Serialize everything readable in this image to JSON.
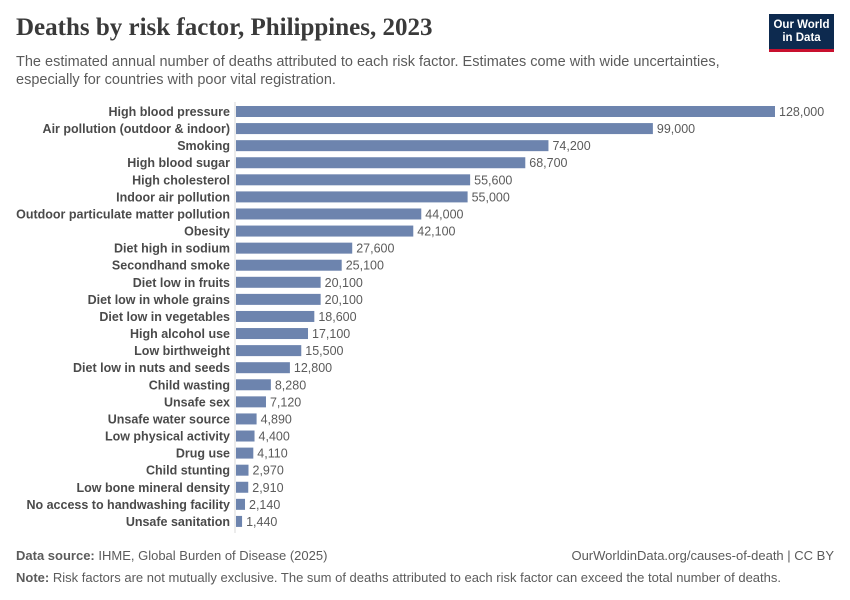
{
  "header": {
    "title": "Deaths by risk factor, Philippines, 2023",
    "subtitle": "The estimated annual number of deaths attributed to each risk factor. Estimates come with wide uncertainties, especially for countries with poor vital registration.",
    "logo_line1": "Our World",
    "logo_line2": "in Data"
  },
  "footer": {
    "source_label": "Data source:",
    "source_text": "IHME, Global Burden of Disease (2025)",
    "url": "OurWorldinData.org/causes-of-death | CC BY",
    "note_label": "Note:",
    "note_text": "Risk factors are not mutually exclusive. The sum of deaths attributed to each risk factor can exceed the total number of deaths."
  },
  "colors": {
    "bar": "#6d84ae",
    "logo_bg": "#0d2a4f",
    "logo_accent": "#c8102e"
  },
  "chart_data": {
    "type": "bar",
    "orientation": "horizontal",
    "categories": [
      "High blood pressure",
      "Air pollution (outdoor & indoor)",
      "Smoking",
      "High blood sugar",
      "High cholesterol",
      "Indoor air pollution",
      "Outdoor particulate matter pollution",
      "Obesity",
      "Diet high in sodium",
      "Secondhand smoke",
      "Diet low in fruits",
      "Diet low in whole grains",
      "Diet low in vegetables",
      "High alcohol use",
      "Low birthweight",
      "Diet low in nuts and seeds",
      "Child wasting",
      "Unsafe sex",
      "Unsafe water source",
      "Low physical activity",
      "Drug use",
      "Child stunting",
      "Low bone mineral density",
      "No access to handwashing facility",
      "Unsafe sanitation"
    ],
    "values": [
      128000,
      99000,
      74200,
      68700,
      55600,
      55000,
      44000,
      42100,
      27600,
      25100,
      20100,
      20100,
      18600,
      17100,
      15500,
      12800,
      8280,
      7120,
      4890,
      4400,
      4110,
      2970,
      2910,
      2140,
      1440
    ],
    "value_labels": [
      "128,000",
      "99,000",
      "74,200",
      "68,700",
      "55,600",
      "55,000",
      "44,000",
      "42,100",
      "27,600",
      "25,100",
      "20,100",
      "20,100",
      "18,600",
      "17,100",
      "15,500",
      "12,800",
      "8,280",
      "7,120",
      "4,890",
      "4,400",
      "4,110",
      "2,970",
      "2,910",
      "2,140",
      "1,440"
    ],
    "xlim": [
      0,
      128000
    ],
    "grid": false,
    "legend": "none"
  }
}
